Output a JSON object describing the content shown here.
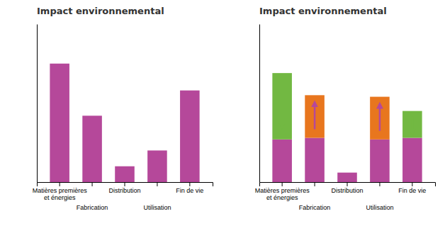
{
  "chart_data": [
    {
      "type": "bar",
      "title": "Impact environnemental",
      "categories": [
        "Matières premières\net énergies",
        "Fabrication",
        "Distribution",
        "Utilisation",
        "Fin de vie"
      ],
      "values": [
        0.75,
        0.42,
        0.1,
        0.2,
        0.58
      ],
      "color": "#b5489a",
      "ylim": [
        0,
        1.0
      ],
      "tick_labels": "x"
    },
    {
      "type": "bar",
      "title": "Impact environnemental",
      "stacked": true,
      "categories": [
        "Matières premières\net énergies",
        "Fabrication",
        "Distribution",
        "Utilisation",
        "Fin de vie"
      ],
      "series": [
        {
          "color": "#b5489a",
          "values": [
            0.27,
            0.28,
            0.06,
            0.27,
            0.28
          ]
        },
        {
          "color": "#72b842",
          "values": [
            0.42,
            0.0,
            0.0,
            0.0,
            0.17
          ]
        },
        {
          "color": "#e8761e",
          "values": [
            0.0,
            0.27,
            0.0,
            0.27,
            0.0
          ]
        }
      ],
      "ylim": [
        0,
        1.0
      ],
      "tick_labels": "x"
    }
  ]
}
